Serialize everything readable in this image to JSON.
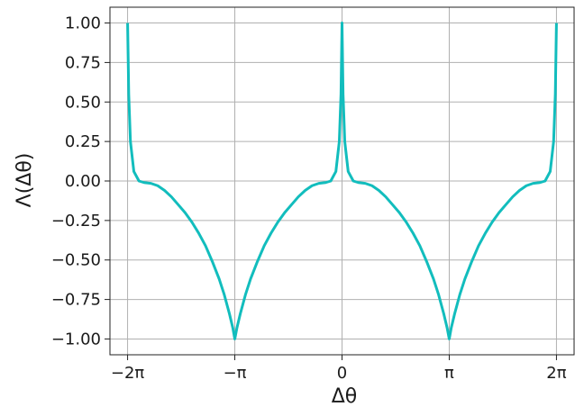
{
  "chart_data": {
    "type": "line",
    "xlabel": "Δθ",
    "ylabel": "Λ(Δθ)",
    "xlim": [
      -6.8,
      6.8
    ],
    "ylim": [
      -1.1,
      1.1
    ],
    "grid": true,
    "xticks": [
      {
        "value": -6.283185,
        "label": "−2π"
      },
      {
        "value": -3.141593,
        "label": "−π"
      },
      {
        "value": 0,
        "label": "0"
      },
      {
        "value": 3.141593,
        "label": "π"
      },
      {
        "value": 6.283185,
        "label": "2π"
      }
    ],
    "yticks": [
      {
        "value": 1.0,
        "label": "1.00"
      },
      {
        "value": 0.75,
        "label": "0.75"
      },
      {
        "value": 0.5,
        "label": "0.50"
      },
      {
        "value": 0.25,
        "label": "0.25"
      },
      {
        "value": 0.0,
        "label": "0.00"
      },
      {
        "value": -0.25,
        "label": "−0.25"
      },
      {
        "value": -0.5,
        "label": "−0.50"
      },
      {
        "value": -0.75,
        "label": "−0.75"
      },
      {
        "value": -1.0,
        "label": "−1.00"
      }
    ],
    "series": [
      {
        "color": "#12bdbd",
        "points": [
          [
            -6.283,
            1.0
          ],
          [
            -6.25,
            0.55
          ],
          [
            -6.2,
            0.25
          ],
          [
            -6.1,
            0.06
          ],
          [
            -5.95,
            0.0
          ],
          [
            -5.8,
            -0.01
          ],
          [
            -5.6,
            -0.015
          ],
          [
            -5.4,
            -0.03
          ],
          [
            -5.2,
            -0.06
          ],
          [
            -5.0,
            -0.1
          ],
          [
            -4.8,
            -0.15
          ],
          [
            -4.6,
            -0.2
          ],
          [
            -4.4,
            -0.26
          ],
          [
            -4.2,
            -0.33
          ],
          [
            -4.0,
            -0.41
          ],
          [
            -3.8,
            -0.51
          ],
          [
            -3.6,
            -0.62
          ],
          [
            -3.45,
            -0.72
          ],
          [
            -3.3,
            -0.84
          ],
          [
            -3.2,
            -0.93
          ],
          [
            -3.1416,
            -1.0
          ],
          [
            -3.08,
            -0.93
          ],
          [
            -2.98,
            -0.84
          ],
          [
            -2.83,
            -0.72
          ],
          [
            -2.68,
            -0.62
          ],
          [
            -2.48,
            -0.51
          ],
          [
            -2.28,
            -0.41
          ],
          [
            -2.08,
            -0.33
          ],
          [
            -1.88,
            -0.26
          ],
          [
            -1.68,
            -0.2
          ],
          [
            -1.48,
            -0.15
          ],
          [
            -1.28,
            -0.1
          ],
          [
            -1.08,
            -0.06
          ],
          [
            -0.88,
            -0.03
          ],
          [
            -0.68,
            -0.015
          ],
          [
            -0.48,
            -0.01
          ],
          [
            -0.33,
            0.0
          ],
          [
            -0.18,
            0.06
          ],
          [
            -0.08,
            0.25
          ],
          [
            -0.03,
            0.55
          ],
          [
            0.0,
            1.0
          ],
          [
            0.03,
            0.55
          ],
          [
            0.08,
            0.25
          ],
          [
            0.18,
            0.06
          ],
          [
            0.33,
            0.0
          ],
          [
            0.48,
            -0.01
          ],
          [
            0.68,
            -0.015
          ],
          [
            0.88,
            -0.03
          ],
          [
            1.08,
            -0.06
          ],
          [
            1.28,
            -0.1
          ],
          [
            1.48,
            -0.15
          ],
          [
            1.68,
            -0.2
          ],
          [
            1.88,
            -0.26
          ],
          [
            2.08,
            -0.33
          ],
          [
            2.28,
            -0.41
          ],
          [
            2.48,
            -0.51
          ],
          [
            2.68,
            -0.62
          ],
          [
            2.83,
            -0.72
          ],
          [
            2.98,
            -0.84
          ],
          [
            3.08,
            -0.93
          ],
          [
            3.1416,
            -1.0
          ],
          [
            3.2,
            -0.93
          ],
          [
            3.3,
            -0.84
          ],
          [
            3.45,
            -0.72
          ],
          [
            3.6,
            -0.62
          ],
          [
            3.8,
            -0.51
          ],
          [
            4.0,
            -0.41
          ],
          [
            4.2,
            -0.33
          ],
          [
            4.4,
            -0.26
          ],
          [
            4.6,
            -0.2
          ],
          [
            4.8,
            -0.15
          ],
          [
            5.0,
            -0.1
          ],
          [
            5.2,
            -0.06
          ],
          [
            5.4,
            -0.03
          ],
          [
            5.6,
            -0.015
          ],
          [
            5.8,
            -0.01
          ],
          [
            5.95,
            0.0
          ],
          [
            6.1,
            0.06
          ],
          [
            6.2,
            0.25
          ],
          [
            6.25,
            0.55
          ],
          [
            6.283,
            1.0
          ]
        ]
      }
    ]
  }
}
